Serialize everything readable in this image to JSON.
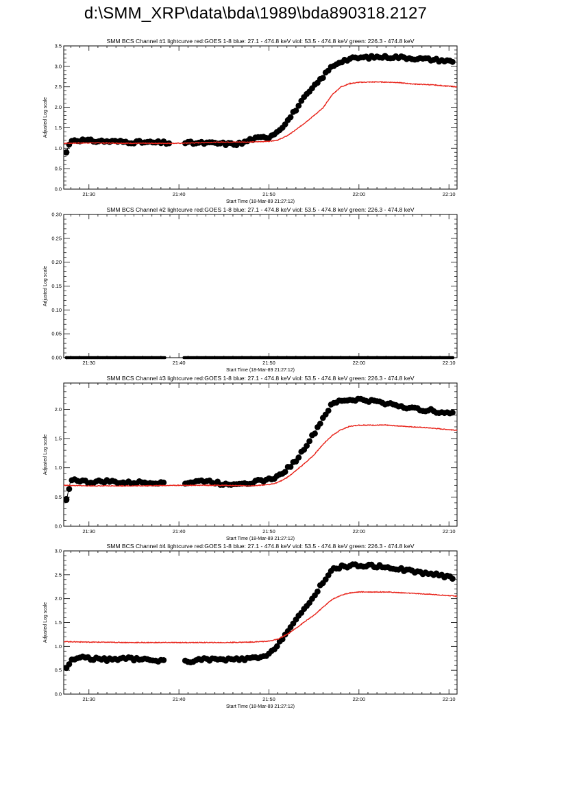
{
  "page": {
    "title": "d:\\SMM_XRP\\data\\bda\\1989\\bda890318.2127"
  },
  "chart_data": [
    {
      "type": "line",
      "title": "SMM BCS Channel #1 lightcurve  red:GOES 1-8  blue: 27.1 - 474.8 keV  viol: 53.5 - 474.8 keV  green: 226.3 - 474.8 keV",
      "xlabel": "Start Time (18-Mar-89 21:27:12)",
      "ylabel": "Adjusted Log scale",
      "xlim": [
        "21:27:12",
        "22:10:54"
      ],
      "ylim": [
        0,
        3.5
      ],
      "x_ticks": [
        "21:30",
        "21:40",
        "21:50",
        "22:00",
        "22:10"
      ],
      "y_ticks": [
        "0.0",
        "0.5",
        "1.0",
        "1.5",
        "2.0",
        "2.5",
        "3.0",
        "3.5"
      ],
      "grid": false,
      "series": [
        {
          "style": "circles-with-line",
          "color": "#000000",
          "gaps": [
            [
              "21:39:00",
              "21:40:40"
            ]
          ],
          "points": [
            [
              "21:27:30",
              0.9
            ],
            [
              "21:28:00",
              1.2
            ],
            [
              "21:29:00",
              1.2
            ],
            [
              "21:30:00",
              1.18
            ],
            [
              "21:32:00",
              1.17
            ],
            [
              "21:35:00",
              1.15
            ],
            [
              "21:39:00",
              1.13
            ],
            [
              "21:40:40",
              1.13
            ],
            [
              "21:44:00",
              1.12
            ],
            [
              "21:46:00",
              1.1
            ],
            [
              "21:47:00",
              1.12
            ],
            [
              "21:48:00",
              1.22
            ],
            [
              "21:49:00",
              1.25
            ],
            [
              "21:50:00",
              1.28
            ],
            [
              "21:51:00",
              1.42
            ],
            [
              "21:52:00",
              1.65
            ],
            [
              "21:53:00",
              1.95
            ],
            [
              "21:54:00",
              2.25
            ],
            [
              "21:55:00",
              2.5
            ],
            [
              "21:56:00",
              2.75
            ],
            [
              "21:57:00",
              3.0
            ],
            [
              "21:58:00",
              3.13
            ],
            [
              "21:59:00",
              3.18
            ],
            [
              "22:00:00",
              3.21
            ],
            [
              "22:02:00",
              3.23
            ],
            [
              "22:04:00",
              3.23
            ],
            [
              "22:06:00",
              3.2
            ],
            [
              "22:08:00",
              3.17
            ],
            [
              "22:10:30",
              3.12
            ]
          ]
        },
        {
          "style": "line",
          "color": "#e8241b",
          "points": [
            [
              "21:27:12",
              1.12
            ],
            [
              "21:30:00",
              1.13
            ],
            [
              "21:35:00",
              1.12
            ],
            [
              "21:40:00",
              1.12
            ],
            [
              "21:45:00",
              1.15
            ],
            [
              "21:48:00",
              1.15
            ],
            [
              "21:50:00",
              1.17
            ],
            [
              "21:51:00",
              1.2
            ],
            [
              "21:52:00",
              1.3
            ],
            [
              "21:53:00",
              1.45
            ],
            [
              "21:54:00",
              1.62
            ],
            [
              "21:55:00",
              1.8
            ],
            [
              "21:56:00",
              1.98
            ],
            [
              "21:57:00",
              2.3
            ],
            [
              "21:58:00",
              2.5
            ],
            [
              "21:59:00",
              2.58
            ],
            [
              "22:00:00",
              2.61
            ],
            [
              "22:02:00",
              2.62
            ],
            [
              "22:04:00",
              2.61
            ],
            [
              "22:06:00",
              2.57
            ],
            [
              "22:08:00",
              2.55
            ],
            [
              "22:10:54",
              2.5
            ]
          ]
        }
      ]
    },
    {
      "type": "line",
      "title": "SMM BCS Channel #2 lightcurve  red:GOES 1-8  blue: 27.1 - 474.8 keV  viol: 53.5 - 474.8 keV  green: 226.3 - 474.8 keV",
      "xlabel": "Start Time (18-Mar-89 21:27:12)",
      "ylabel": "Adjusted Log scale",
      "xlim": [
        "21:27:12",
        "22:10:54"
      ],
      "ylim": [
        0,
        0.3
      ],
      "x_ticks": [
        "21:30",
        "21:40",
        "21:50",
        "22:00",
        "22:10"
      ],
      "y_ticks": [
        "0.00",
        "0.05",
        "0.10",
        "0.15",
        "0.20",
        "0.25",
        "0.30"
      ],
      "grid": false,
      "series": [
        {
          "style": "circles-with-line",
          "color": "#000000",
          "gaps": [
            [
              "21:38:30",
              "21:40:30"
            ]
          ],
          "points": [
            [
              "21:27:30",
              0.0
            ],
            [
              "21:38:30",
              0.0
            ],
            [
              "21:40:30",
              0.0
            ],
            [
              "22:10:30",
              0.0
            ]
          ]
        }
      ]
    },
    {
      "type": "line",
      "title": "SMM BCS Channel #3 lightcurve  red:GOES 1-8  blue: 27.1 - 474.8 keV  viol: 53.5 - 474.8 keV  green: 226.3 - 474.8 keV",
      "xlabel": "Start Time (18-Mar-89 21:27:12)",
      "ylabel": "Adjusted Log scale",
      "xlim": [
        "21:27:12",
        "22:10:54"
      ],
      "ylim": [
        0,
        2.45
      ],
      "x_ticks": [
        "21:30",
        "21:40",
        "21:50",
        "22:00",
        "22:10"
      ],
      "y_ticks": [
        "0.0",
        "0.5",
        "1.0",
        "1.5",
        "2.0"
      ],
      "grid": false,
      "series": [
        {
          "style": "circles-with-line",
          "color": "#000000",
          "gaps": [
            [
              "21:38:30",
              "21:40:40"
            ]
          ],
          "points": [
            [
              "21:27:30",
              0.45
            ],
            [
              "21:28:00",
              0.8
            ],
            [
              "21:29:00",
              0.78
            ],
            [
              "21:30:00",
              0.75
            ],
            [
              "21:32:00",
              0.77
            ],
            [
              "21:34:00",
              0.74
            ],
            [
              "21:36:00",
              0.75
            ],
            [
              "21:38:30",
              0.75
            ],
            [
              "21:40:40",
              0.74
            ],
            [
              "21:43:00",
              0.78
            ],
            [
              "21:45:00",
              0.72
            ],
            [
              "21:48:00",
              0.75
            ],
            [
              "21:50:00",
              0.8
            ],
            [
              "21:51:00",
              0.85
            ],
            [
              "21:52:00",
              0.98
            ],
            [
              "21:53:00",
              1.12
            ],
            [
              "21:54:00",
              1.35
            ],
            [
              "21:55:00",
              1.58
            ],
            [
              "21:56:00",
              1.85
            ],
            [
              "21:57:00",
              2.08
            ],
            [
              "21:58:00",
              2.15
            ],
            [
              "22:00:00",
              2.17
            ],
            [
              "22:02:00",
              2.13
            ],
            [
              "22:04:00",
              2.08
            ],
            [
              "22:06:00",
              2.01
            ],
            [
              "22:08:00",
              1.98
            ],
            [
              "22:10:30",
              1.92
            ]
          ]
        },
        {
          "style": "line",
          "color": "#e8241b",
          "points": [
            [
              "21:27:12",
              0.7
            ],
            [
              "21:30:00",
              0.69
            ],
            [
              "21:35:00",
              0.69
            ],
            [
              "21:40:00",
              0.7
            ],
            [
              "21:45:00",
              0.7
            ],
            [
              "21:48:00",
              0.69
            ],
            [
              "21:50:00",
              0.71
            ],
            [
              "21:51:00",
              0.75
            ],
            [
              "21:52:00",
              0.83
            ],
            [
              "21:53:00",
              0.95
            ],
            [
              "21:54:00",
              1.08
            ],
            [
              "21:55:00",
              1.22
            ],
            [
              "21:56:00",
              1.4
            ],
            [
              "21:57:00",
              1.55
            ],
            [
              "21:58:00",
              1.65
            ],
            [
              "21:59:00",
              1.71
            ],
            [
              "22:00:00",
              1.73
            ],
            [
              "22:03:00",
              1.73
            ],
            [
              "22:06:00",
              1.7
            ],
            [
              "22:08:00",
              1.68
            ],
            [
              "22:10:54",
              1.64
            ]
          ]
        }
      ]
    },
    {
      "type": "line",
      "title": "SMM BCS Channel #4 lightcurve  red:GOES 1-8  blue: 27.1 - 474.8 keV  viol: 53.5 - 474.8 keV  green: 226.3 - 474.8 keV",
      "xlabel": "Start Time (18-Mar-89 21:27:12)",
      "ylabel": "Adjusted Log scale",
      "xlim": [
        "21:27:12",
        "22:10:54"
      ],
      "ylim": [
        0,
        3.0
      ],
      "x_ticks": [
        "21:30",
        "21:40",
        "21:50",
        "22:00",
        "22:10"
      ],
      "y_ticks": [
        "0.0",
        "0.5",
        "1.0",
        "1.5",
        "2.0",
        "2.5",
        "3.0"
      ],
      "grid": false,
      "series": [
        {
          "style": "circles-with-line",
          "color": "#000000",
          "gaps": [
            [
              "21:38:30",
              "21:40:40"
            ]
          ],
          "points": [
            [
              "21:27:30",
              0.55
            ],
            [
              "21:28:00",
              0.7
            ],
            [
              "21:29:00",
              0.78
            ],
            [
              "21:30:00",
              0.75
            ],
            [
              "21:32:00",
              0.72
            ],
            [
              "21:34:00",
              0.75
            ],
            [
              "21:36:00",
              0.72
            ],
            [
              "21:38:30",
              0.7
            ],
            [
              "21:40:40",
              0.68
            ],
            [
              "21:43:00",
              0.73
            ],
            [
              "21:45:00",
              0.72
            ],
            [
              "21:47:00",
              0.73
            ],
            [
              "21:49:00",
              0.76
            ],
            [
              "21:50:00",
              0.82
            ],
            [
              "21:51:00",
              1.05
            ],
            [
              "21:52:00",
              1.3
            ],
            [
              "21:53:00",
              1.55
            ],
            [
              "21:54:00",
              1.78
            ],
            [
              "21:55:00",
              2.05
            ],
            [
              "21:56:00",
              2.35
            ],
            [
              "21:57:00",
              2.6
            ],
            [
              "21:58:00",
              2.67
            ],
            [
              "22:00:00",
              2.7
            ],
            [
              "22:02:00",
              2.68
            ],
            [
              "22:04:00",
              2.64
            ],
            [
              "22:06:00",
              2.57
            ],
            [
              "22:08:00",
              2.52
            ],
            [
              "22:10:30",
              2.44
            ]
          ]
        },
        {
          "style": "line",
          "color": "#e8241b",
          "points": [
            [
              "21:27:12",
              1.1
            ],
            [
              "21:30:00",
              1.09
            ],
            [
              "21:35:00",
              1.08
            ],
            [
              "21:40:00",
              1.08
            ],
            [
              "21:45:00",
              1.08
            ],
            [
              "21:48:00",
              1.09
            ],
            [
              "21:50:00",
              1.11
            ],
            [
              "21:51:00",
              1.15
            ],
            [
              "21:52:00",
              1.25
            ],
            [
              "21:53:00",
              1.38
            ],
            [
              "21:54:00",
              1.52
            ],
            [
              "21:55:00",
              1.65
            ],
            [
              "21:56:00",
              1.82
            ],
            [
              "21:57:00",
              1.98
            ],
            [
              "21:58:00",
              2.07
            ],
            [
              "21:59:00",
              2.12
            ],
            [
              "22:00:00",
              2.14
            ],
            [
              "22:03:00",
              2.14
            ],
            [
              "22:06:00",
              2.11
            ],
            [
              "22:08:00",
              2.09
            ],
            [
              "22:10:54",
              2.05
            ]
          ]
        }
      ]
    }
  ]
}
